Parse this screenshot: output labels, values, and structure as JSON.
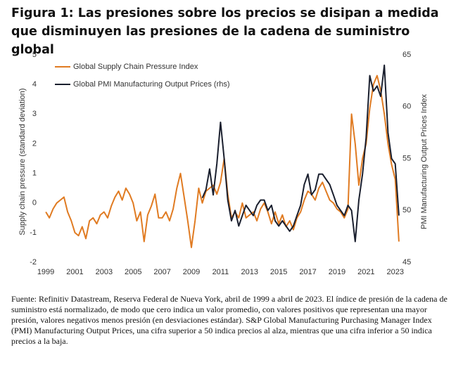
{
  "title": "Figura 1: Las presiones sobre los precios se disipan a medida que disminuyen las presiones de la cadena de suministro global",
  "chart_data": {
    "type": "line",
    "ylabel": "Supply chain pressure (standard deviation)",
    "y2label": "PMI Manufacturing Output  Prices Index",
    "xlim": [
      1998.9,
      2023.4
    ],
    "xticks": [
      1999,
      2001,
      2003,
      2005,
      2007,
      2009,
      2011,
      2013,
      2015,
      2017,
      2019,
      2021,
      2023
    ],
    "ylim": [
      -2,
      5
    ],
    "yticks": [
      -2,
      -1,
      0,
      1,
      2,
      3,
      4,
      5
    ],
    "y2lim": [
      45,
      65
    ],
    "y2ticks": [
      45,
      50,
      55,
      60,
      65
    ],
    "legend": "upper-left",
    "x": [
      1999,
      1999.25,
      1999.5,
      1999.75,
      2000,
      2000.25,
      2000.5,
      2000.75,
      2001,
      2001.25,
      2001.5,
      2001.75,
      2002,
      2002.25,
      2002.5,
      2002.75,
      2003,
      2003.25,
      2003.5,
      2003.75,
      2004,
      2004.25,
      2004.5,
      2004.75,
      2005,
      2005.25,
      2005.5,
      2005.75,
      2006,
      2006.25,
      2006.5,
      2006.75,
      2007,
      2007.25,
      2007.5,
      2007.75,
      2008,
      2008.25,
      2008.5,
      2008.75,
      2009,
      2009.25,
      2009.5,
      2009.75,
      2010,
      2010.25,
      2010.5,
      2010.75,
      2011,
      2011.25,
      2011.5,
      2011.75,
      2012,
      2012.25,
      2012.5,
      2012.75,
      2013,
      2013.25,
      2013.5,
      2013.75,
      2014,
      2014.25,
      2014.5,
      2014.75,
      2015,
      2015.25,
      2015.5,
      2015.75,
      2016,
      2016.25,
      2016.5,
      2016.75,
      2017,
      2017.25,
      2017.5,
      2017.75,
      2018,
      2018.25,
      2018.5,
      2018.75,
      2019,
      2019.25,
      2019.5,
      2019.75,
      2020,
      2020.25,
      2020.5,
      2020.75,
      2021,
      2021.25,
      2021.5,
      2021.75,
      2022,
      2022.25,
      2022.5,
      2022.75,
      2023,
      2023.25
    ],
    "series": [
      {
        "name": "Global Supply Chain Pressure Index",
        "color": "#e07b22",
        "values": [
          -0.3,
          -0.5,
          -0.2,
          0.0,
          0.1,
          0.2,
          -0.3,
          -0.6,
          -1.0,
          -1.1,
          -0.8,
          -1.2,
          -0.6,
          -0.5,
          -0.7,
          -0.4,
          -0.3,
          -0.5,
          -0.1,
          0.2,
          0.4,
          0.1,
          0.5,
          0.3,
          0.0,
          -0.6,
          -0.3,
          -1.3,
          -0.4,
          -0.1,
          0.3,
          -0.5,
          -0.5,
          -0.3,
          -0.6,
          -0.2,
          0.5,
          1.0,
          0.2,
          -0.6,
          -1.5,
          -0.6,
          0.5,
          0.0,
          0.4,
          0.5,
          0.6,
          0.3,
          0.7,
          1.5,
          0.3,
          -0.5,
          -0.3,
          -0.5,
          0.0,
          -0.5,
          -0.4,
          -0.3,
          -0.6,
          -0.2,
          0.0,
          -0.3,
          -0.7,
          -0.3,
          -0.7,
          -0.4,
          -0.8,
          -0.6,
          -0.9,
          -0.5,
          -0.3,
          0.1,
          0.4,
          0.3,
          0.1,
          0.5,
          0.7,
          0.4,
          0.1,
          0.0,
          -0.2,
          -0.3,
          -0.5,
          -0.2,
          3.0,
          2.0,
          0.6,
          1.5,
          2.0,
          3.2,
          4.0,
          4.3,
          3.8,
          3.0,
          2.0,
          1.3,
          0.8,
          -1.3
        ]
      },
      {
        "name": "Global PMI Manufacturing Output Prices (rhs)",
        "color": "#1a1f2e",
        "axis": "y2",
        "values": [
          null,
          null,
          null,
          null,
          null,
          null,
          null,
          null,
          null,
          null,
          null,
          null,
          null,
          null,
          null,
          null,
          null,
          null,
          null,
          null,
          null,
          null,
          null,
          null,
          null,
          null,
          null,
          null,
          null,
          null,
          null,
          null,
          null,
          null,
          null,
          null,
          null,
          null,
          null,
          null,
          null,
          null,
          null,
          51.2,
          52,
          54,
          51.5,
          54.5,
          58.5,
          55,
          51,
          49,
          50,
          48.5,
          49.5,
          50.5,
          50,
          49.5,
          50.5,
          51,
          51,
          50,
          50.5,
          49,
          48.5,
          49,
          48.5,
          48,
          48.5,
          49.5,
          50.5,
          52.5,
          53.5,
          51.5,
          52,
          53.5,
          53.5,
          53,
          52.5,
          51.5,
          50.5,
          50,
          49.5,
          50.5,
          50,
          47,
          51,
          53.5,
          57,
          63,
          61.5,
          62,
          61,
          64,
          57.5,
          55,
          54.5,
          49.5
        ]
      }
    ]
  },
  "note": "Fuente: Refinitiv Datastream, Reserva Federal de Nueva York, abril de 1999 a abril de 2023. El índice de presión de la cadena de suministro está normalizado, de modo que cero indica un valor promedio, con valores positivos que representan una mayor presión, valores negativos menos presión (en desviaciones estándar). S&P Global Manufacturing Purchasing Manager Index (PMI) Manufacturing Output Prices, una cifra superior a 50 indica precios al alza, mientras que una cifra inferior a 50 indica precios a la baja."
}
